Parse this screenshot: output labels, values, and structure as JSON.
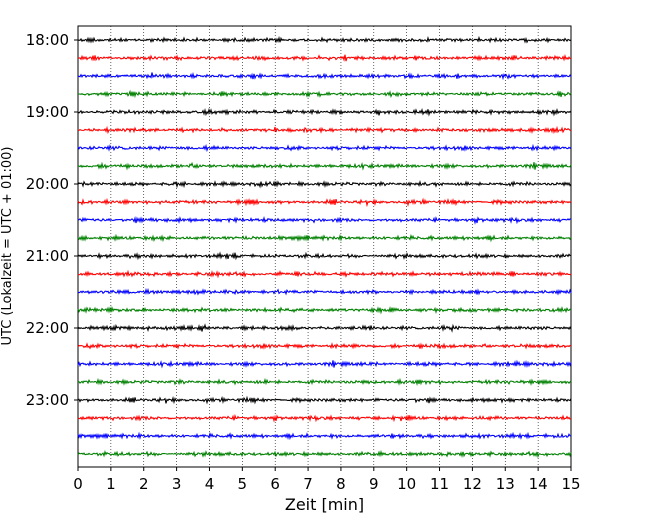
{
  "chart_data": {
    "type": "line",
    "title": "",
    "xlabel": "Zeit  [min]",
    "ylabel": "UTC (Lokalzeit = UTC + 01:00)",
    "xlim": [
      0,
      15
    ],
    "x_ticks": [
      "0",
      "1",
      "2",
      "3",
      "4",
      "5",
      "6",
      "7",
      "8",
      "9",
      "10",
      "11",
      "12",
      "13",
      "14",
      "15"
    ],
    "y_tick_labels": [
      "18:00",
      "19:00",
      "20:00",
      "21:00",
      "22:00",
      "23:00"
    ],
    "grid": "vertical dotted lines at each minute",
    "trace_interval_min": 15,
    "trace_count": 24,
    "trace_colors": [
      "#000000",
      "#ff0000",
      "#0000ff",
      "#008000"
    ]
  }
}
